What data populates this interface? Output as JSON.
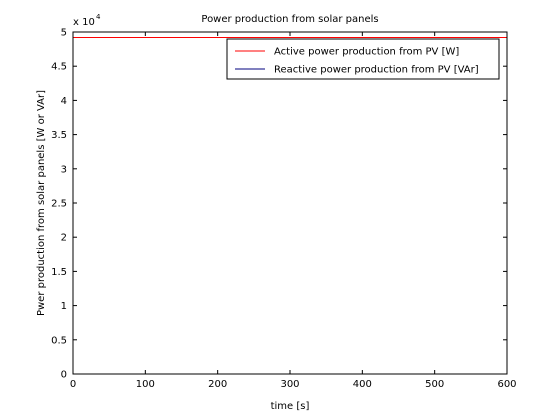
{
  "chart_data": {
    "type": "line",
    "title": "Power production from solar panels",
    "xlabel": "time [s]",
    "ylabel": "Pwer production from solar panels [W or VAr]",
    "exponent_label": "x 10",
    "exponent_power": "4",
    "xlim": [
      0,
      600
    ],
    "ylim": [
      0,
      50000
    ],
    "x_ticks": [
      0,
      100,
      200,
      300,
      400,
      500,
      600
    ],
    "x_tick_labels": [
      "0",
      "100",
      "200",
      "300",
      "400",
      "500",
      "600"
    ],
    "y_ticks": [
      0,
      5000,
      10000,
      15000,
      20000,
      25000,
      30000,
      35000,
      40000,
      45000,
      50000
    ],
    "y_tick_labels": [
      "0",
      "0.5",
      "1",
      "1.5",
      "2",
      "2.5",
      "3",
      "3.5",
      "4",
      "4.5",
      "5"
    ],
    "grid": false,
    "legend_position": "top-right",
    "series": [
      {
        "name": "Active power production from PV [W]",
        "color": "#ff0000",
        "x": [
          0,
          600
        ],
        "y": [
          49200,
          49200
        ]
      },
      {
        "name": "Reactive power production from PV [VAr]",
        "color": "#00007f",
        "x": [
          0,
          600
        ],
        "y": [
          0,
          0
        ]
      }
    ]
  }
}
